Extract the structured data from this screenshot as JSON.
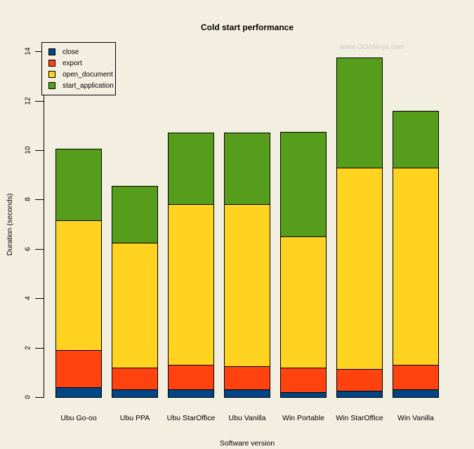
{
  "watermark": {
    "text": "www.OOoNinja.com"
  },
  "chart_data": {
    "type": "bar",
    "stacked": true,
    "title": "Cold start performance",
    "xlabel": "Software version",
    "ylabel": "Duration (seconds)",
    "ylim": [
      0,
      14
    ],
    "yticks": [
      0,
      2,
      4,
      6,
      8,
      10,
      12,
      14
    ],
    "grid": false,
    "legend_position": "top-left",
    "categories": [
      "Ubu Go-oo",
      "Ubu PPA",
      "Ubu StarOffice",
      "Ubu Vanilla",
      "Win Portable",
      "Win StarOffice",
      "Win Vanilla"
    ],
    "series": [
      {
        "name": "close",
        "color": "#004586",
        "values": [
          0.4,
          0.3,
          0.3,
          0.3,
          0.2,
          0.25,
          0.3
        ]
      },
      {
        "name": "export",
        "color": "#FF420E",
        "values": [
          1.5,
          0.9,
          1.0,
          0.95,
          1.0,
          0.9,
          1.0
        ]
      },
      {
        "name": "open_document",
        "color": "#FFD320",
        "values": [
          5.25,
          5.05,
          6.5,
          6.55,
          5.3,
          8.15,
          8.0
        ]
      },
      {
        "name": "start_application",
        "color": "#579D1C",
        "values": [
          2.9,
          2.3,
          2.9,
          2.9,
          4.25,
          4.45,
          2.3
        ]
      }
    ],
    "stack_totals": [
      10.05,
      8.55,
      10.7,
      10.7,
      10.75,
      13.75,
      11.6
    ]
  },
  "colors": {
    "background": "#F2EFE1",
    "axis": "#000000",
    "text": "#000000",
    "watermark": "#C8C7C0"
  }
}
